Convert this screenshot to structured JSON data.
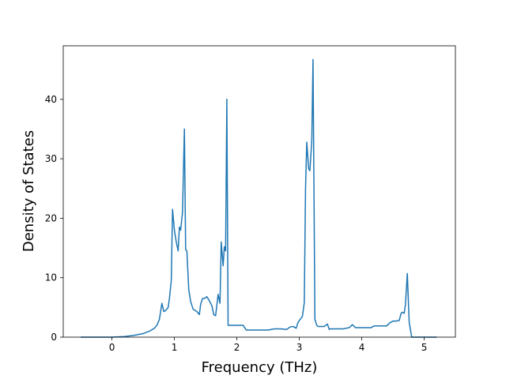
{
  "chart_data": {
    "type": "line",
    "title": "",
    "xlabel": "Frequency (THz)",
    "ylabel": "Density of States",
    "xlim": [
      -0.78,
      5.5
    ],
    "ylim": [
      0,
      49
    ],
    "xticks": [
      0,
      1,
      2,
      3,
      4,
      5
    ],
    "xtick_labels": [
      "0",
      "1",
      "2",
      "3",
      "4",
      "5"
    ],
    "yticks": [
      0,
      10,
      20,
      30,
      40
    ],
    "ytick_labels": [
      "0",
      "10",
      "20",
      "30",
      "40"
    ],
    "grid": false,
    "legend": "none",
    "series": [
      {
        "color": "#1f77b4",
        "x": [
          -0.5,
          -0.3,
          0.0,
          0.2,
          0.35,
          0.5,
          0.6,
          0.68,
          0.72,
          0.76,
          0.8,
          0.83,
          0.86,
          0.9,
          0.92,
          0.95,
          0.97,
          1.0,
          1.03,
          1.06,
          1.08,
          1.1,
          1.13,
          1.16,
          1.18,
          1.2,
          1.23,
          1.26,
          1.3,
          1.33,
          1.36,
          1.4,
          1.42,
          1.45,
          1.48,
          1.52,
          1.55,
          1.6,
          1.63,
          1.66,
          1.7,
          1.73,
          1.75,
          1.78,
          1.8,
          1.82,
          1.84,
          1.86,
          1.88,
          1.9,
          1.92,
          2.0,
          2.1,
          2.15,
          2.2,
          2.3,
          2.4,
          2.5,
          2.55,
          2.6,
          2.7,
          2.8,
          2.85,
          2.9,
          2.95,
          2.98,
          3.0,
          3.05,
          3.08,
          3.1,
          3.12,
          3.15,
          3.17,
          3.2,
          3.22,
          3.25,
          3.28,
          3.3,
          3.4,
          3.45,
          3.48,
          3.5,
          3.6,
          3.7,
          3.8,
          3.85,
          3.9,
          4.0,
          4.1,
          4.15,
          4.2,
          4.3,
          4.4,
          4.45,
          4.5,
          4.55,
          4.6,
          4.63,
          4.65,
          4.68,
          4.7,
          4.73,
          4.76,
          4.8,
          5.0,
          5.2
        ],
        "y": [
          0,
          0,
          0,
          0.1,
          0.3,
          0.6,
          1.0,
          1.5,
          2.0,
          3.0,
          5.7,
          4.3,
          4.5,
          5.0,
          6.5,
          9.5,
          21.5,
          18.0,
          16.0,
          14.5,
          18.5,
          18.0,
          21.0,
          35.0,
          14.7,
          14.5,
          8.0,
          6.0,
          4.7,
          4.5,
          4.3,
          3.8,
          5.5,
          6.5,
          6.5,
          6.8,
          6.3,
          5.3,
          3.8,
          3.6,
          7.2,
          5.7,
          16.0,
          12.0,
          15.2,
          14.5,
          40.0,
          2.0,
          2.0,
          2.0,
          2.0,
          2.0,
          2.0,
          1.2,
          1.2,
          1.2,
          1.2,
          1.2,
          1.3,
          1.4,
          1.4,
          1.3,
          1.7,
          1.8,
          1.5,
          2.5,
          2.8,
          3.5,
          5.8,
          25.0,
          32.8,
          28.3,
          28.0,
          33.0,
          46.7,
          3.0,
          2.0,
          1.8,
          1.8,
          2.2,
          1.3,
          1.4,
          1.4,
          1.4,
          1.6,
          2.1,
          1.6,
          1.6,
          1.6,
          1.6,
          1.9,
          1.9,
          1.9,
          2.4,
          2.7,
          2.7,
          2.8,
          4.0,
          4.2,
          4.0,
          5.5,
          10.7,
          2.5,
          0,
          0,
          0
        ]
      }
    ]
  }
}
